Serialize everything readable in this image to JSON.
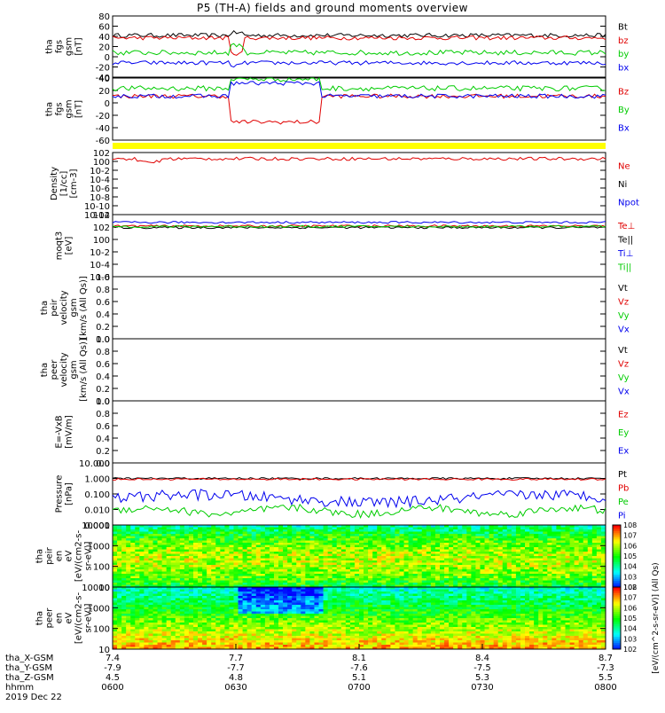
{
  "title": "P5 (TH-A) fields and ground moments overview",
  "chart_data": [
    {
      "id": "p1",
      "type": "line",
      "ylabel": [
        "tha",
        "fgs",
        "gsm",
        "[nT]"
      ],
      "yticks": [
        -40,
        -20,
        0,
        20,
        40,
        60,
        80
      ],
      "series": [
        {
          "name": "Bt",
          "color": "#000000"
        },
        {
          "name": "bz",
          "color": "#e00000"
        },
        {
          "name": "by",
          "color": "#00cc00"
        },
        {
          "name": "bx",
          "color": "#0000ee"
        }
      ]
    },
    {
      "id": "p2",
      "type": "line",
      "ylabel": [
        "tha",
        "fgs",
        "gsm",
        "[nT]"
      ],
      "yticks": [
        -60,
        -40,
        -20,
        0,
        20,
        40
      ],
      "series": [
        {
          "name": "Bz",
          "color": "#e00000"
        },
        {
          "name": "By",
          "color": "#00cc00"
        },
        {
          "name": "Bx",
          "color": "#0000ee"
        }
      ]
    },
    {
      "id": "p3",
      "type": "line",
      "ylabel": [
        "Density",
        "[1/cc]",
        "[cm-3]"
      ],
      "yticks": [
        "10-12",
        "10-10",
        "10-8",
        "10-6",
        "10-4",
        "10-2",
        "100",
        "102"
      ],
      "series": [
        {
          "name": "Ne",
          "color": "#e00000"
        },
        {
          "name": "Ni",
          "color": "#000000"
        },
        {
          "name": "Npot",
          "color": "#0000ee"
        }
      ]
    },
    {
      "id": "p4",
      "type": "line",
      "ylabel": [
        "moqt3",
        "[eV]"
      ],
      "yticks": [
        "10-6",
        "10-4",
        "10-2",
        "100",
        "102",
        "104"
      ],
      "series": [
        {
          "name": "Te⊥",
          "color": "#e00000"
        },
        {
          "name": "Te||",
          "color": "#000000"
        },
        {
          "name": "Ti⊥",
          "color": "#0000ee"
        },
        {
          "name": "Ti||",
          "color": "#00cc00"
        }
      ]
    },
    {
      "id": "p5",
      "type": "line",
      "ylabel": [
        "tha",
        "peir",
        "velocity",
        "gsm",
        "[km/s (All Qs)]"
      ],
      "yticks": [
        "0.0",
        "0.2",
        "0.4",
        "0.6",
        "0.8",
        "1.0"
      ],
      "series": [
        {
          "name": "Vt",
          "color": "#000000"
        },
        {
          "name": "Vz",
          "color": "#e00000"
        },
        {
          "name": "Vy",
          "color": "#00cc00"
        },
        {
          "name": "Vx",
          "color": "#0000ee"
        }
      ]
    },
    {
      "id": "p6",
      "type": "line",
      "ylabel": [
        "tha",
        "peer",
        "velocity",
        "gsm",
        "[km/s (All Qs)]"
      ],
      "yticks": [
        "0.0",
        "0.2",
        "0.4",
        "0.6",
        "0.8",
        "1.0"
      ],
      "series": [
        {
          "name": "Vt",
          "color": "#000000"
        },
        {
          "name": "Vz",
          "color": "#e00000"
        },
        {
          "name": "Vy",
          "color": "#00cc00"
        },
        {
          "name": "Vx",
          "color": "#0000ee"
        }
      ]
    },
    {
      "id": "p7",
      "type": "line",
      "ylabel": [
        "E=-VxB",
        "[mV/m]"
      ],
      "yticks": [
        "0.0",
        "0.2",
        "0.4",
        "0.6",
        "0.8",
        "1.0"
      ],
      "series": [
        {
          "name": "Ez",
          "color": "#e00000"
        },
        {
          "name": "Ey",
          "color": "#00cc00"
        },
        {
          "name": "Ex",
          "color": "#0000ee"
        }
      ]
    },
    {
      "id": "p8",
      "type": "line",
      "ylabel": [
        "Pressure",
        "[nPa]"
      ],
      "yticks": [
        "0.001",
        "0.010",
        "0.100",
        "1.000",
        "10.000"
      ],
      "series": [
        {
          "name": "Pt",
          "color": "#000000"
        },
        {
          "name": "Pb",
          "color": "#e00000"
        },
        {
          "name": "Pe",
          "color": "#00cc00"
        },
        {
          "name": "Pi",
          "color": "#0000ee"
        }
      ]
    },
    {
      "id": "p9",
      "type": "heatmap",
      "ylabel": [
        "tha",
        "peir",
        "en",
        "eV",
        "[eV/(cm2-s-",
        "sr-eV)]"
      ],
      "yticks": [
        "10",
        "100",
        "1000",
        "10000"
      ],
      "colorbar_label": "[eV/(cm^2-s-sr-eV)] (All Qs)",
      "colorbar_ticks": [
        "102",
        "103",
        "104",
        "105",
        "106",
        "107",
        "108"
      ]
    },
    {
      "id": "p10",
      "type": "heatmap",
      "ylabel": [
        "tha",
        "peer",
        "en",
        "eV",
        "[eV/(cm2-s-",
        "sr-eV)]"
      ],
      "yticks": [
        "10",
        "100",
        "1000",
        "10000"
      ],
      "colorbar_label": "[eV/(cm^2-s-sr-eV)] (All Qs)",
      "colorbar_ticks": [
        "102",
        "103",
        "104",
        "105",
        "106",
        "107",
        "108"
      ]
    }
  ],
  "xaxis": {
    "row_labels": [
      "tha_X-GSM",
      "tha_Y-GSM",
      "tha_Z-GSM",
      "hhmm",
      "2019 Dec 22"
    ],
    "ticks": [
      {
        "x": "7.4",
        "y": "-7.9",
        "z": "4.5",
        "hhmm": "0600"
      },
      {
        "x": "7.7",
        "y": "-7.7",
        "z": "4.8",
        "hhmm": "0630"
      },
      {
        "x": "8.1",
        "y": "-7.6",
        "z": "5.1",
        "hhmm": "0700"
      },
      {
        "x": "8.4",
        "y": "-7.5",
        "z": "5.3",
        "hhmm": "0730"
      },
      {
        "x": "8.7",
        "y": "-7.3",
        "z": "5.5",
        "hhmm": "0800"
      }
    ]
  },
  "colors": {
    "black": "#000000",
    "red": "#e00000",
    "green": "#00cc00",
    "blue": "#0000ee",
    "yellow_bar": "#ffff00"
  }
}
